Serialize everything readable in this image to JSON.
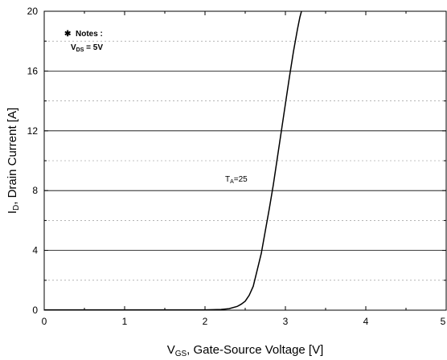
{
  "chart_data": {
    "type": "line",
    "title": "",
    "xlabel": {
      "main": "V",
      "sub": "GS",
      "rest": ", Gate-Source Voltage [V]"
    },
    "ylabel": {
      "main": "I",
      "sub": "D",
      "rest": ", Drain Current [A]"
    },
    "xlim": [
      0,
      5
    ],
    "ylim": [
      0,
      20
    ],
    "x_ticks": [
      0,
      1,
      2,
      3,
      4,
      5
    ],
    "y_ticks": [
      0,
      4,
      8,
      12,
      16,
      20
    ],
    "x_tick_labels": [
      "0",
      "1",
      "2",
      "3",
      "4",
      "5"
    ],
    "y_tick_labels": [
      "0",
      "4",
      "8",
      "12",
      "16",
      "20"
    ],
    "grid": "horizontal",
    "notes": {
      "symbol": "✱",
      "title": "Notes :",
      "line_main": "V",
      "line_sub": "DS",
      "line_rest": " = 5V"
    },
    "annotation": {
      "main": "T",
      "sub": "A",
      "rest": "=25",
      "x": 3.0,
      "y": 8.6
    },
    "series": [
      {
        "x": [
          0,
          0.5,
          1.0,
          1.5,
          2.0,
          2.2,
          2.3,
          2.4,
          2.45,
          2.5,
          2.55,
          2.6,
          2.65,
          2.7,
          2.75,
          2.8,
          2.85,
          2.9,
          2.95,
          3.0,
          3.05,
          3.1,
          3.15,
          3.18,
          3.2
        ],
        "y": [
          0.02,
          0.02,
          0.02,
          0.02,
          0.02,
          0.05,
          0.1,
          0.25,
          0.4,
          0.6,
          1.0,
          1.6,
          2.7,
          3.8,
          5.3,
          6.8,
          8.4,
          10.2,
          12.0,
          13.8,
          15.6,
          17.3,
          18.8,
          19.6,
          20.0
        ]
      }
    ]
  }
}
